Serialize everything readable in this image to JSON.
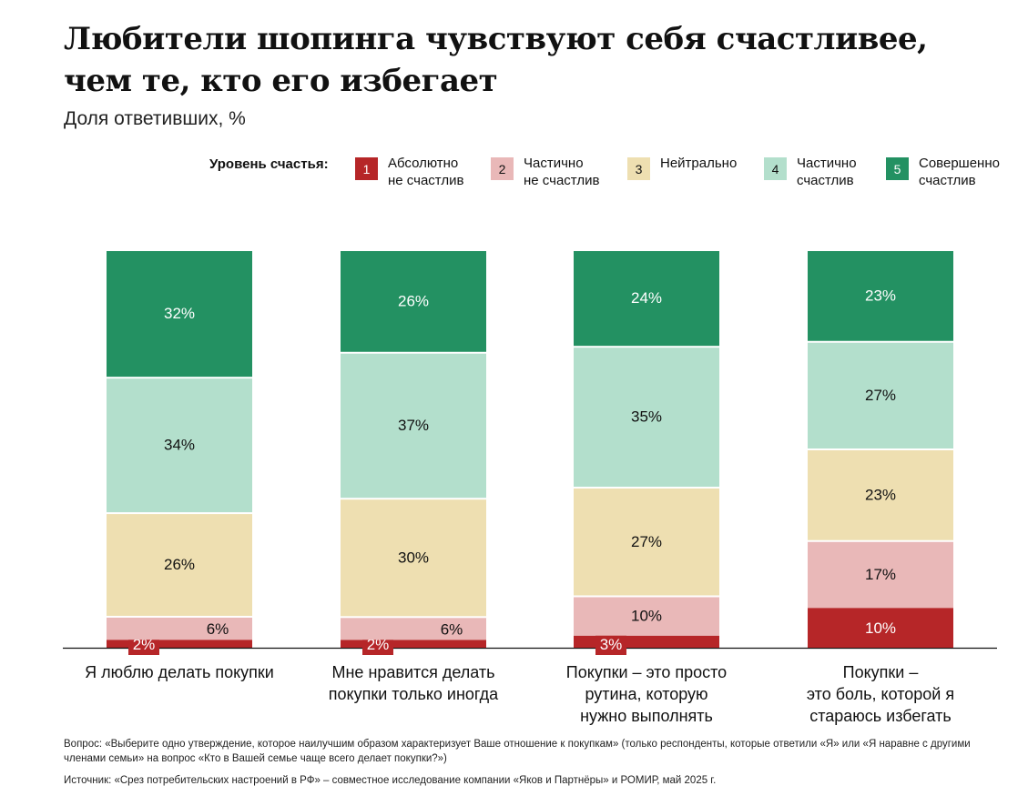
{
  "chart_data": {
    "type": "bar",
    "stacked": true,
    "title": "Любители шопинга чувствуют себя счастливее,\nчем те, кто его избегает",
    "subtitle": "Доля ответивших, %",
    "legend_title": "Уровень счастья:",
    "categories": [
      "Я люблю делать покупки",
      "Мне нравится делать\nпокупки только иногда",
      "Покупки – это просто\nрутина, которую\nнужно выполнять",
      "Покупки –\nэто боль, которой я\nстараюсь избегать"
    ],
    "series": [
      {
        "code": "1",
        "name": "Абсолютно\nне счастлив",
        "color": "#b62628",
        "text_color": "#ffffff",
        "values": [
          2,
          2,
          3,
          10
        ]
      },
      {
        "code": "2",
        "name": "Частично\nне счастлив",
        "color": "#e9b8b8",
        "text_color": "#111111",
        "values": [
          6,
          6,
          10,
          17
        ]
      },
      {
        "code": "3",
        "name": "Нейтрально",
        "color": "#eedfb1",
        "text_color": "#111111",
        "values": [
          26,
          30,
          27,
          23
        ]
      },
      {
        "code": "4",
        "name": "Частично\nсчастлив",
        "color": "#b3dfcc",
        "text_color": "#111111",
        "values": [
          34,
          37,
          35,
          27
        ]
      },
      {
        "code": "5",
        "name": "Совершенно\nсчастлив",
        "color": "#239162",
        "text_color": "#ffffff",
        "values": [
          32,
          26,
          24,
          23
        ]
      }
    ],
    "data_labels": [
      [
        "2%",
        "6%",
        "26%",
        "34%",
        "32%"
      ],
      [
        "2%",
        "6%",
        "30%",
        "37%",
        "26%"
      ],
      [
        "3%",
        "10%",
        "27%",
        "35%",
        "24%"
      ],
      [
        "10%",
        "17%",
        "23%",
        "27%",
        "23%"
      ]
    ],
    "ylim": [
      0,
      100
    ],
    "grid": false,
    "legend_position": "top"
  },
  "notes": {
    "question": "Вопрос: «Выберите одно утверждение, которое наилучшим образом характеризует Ваше отношение к покупкам» (только респонденты, которые ответили «Я» или «Я наравне с другими членами семьи» на вопрос «Кто в Вашей семье чаще всего делает покупки?»)",
    "source": "Источник: «Срез потребительских настроений в РФ» – совместное исследование компании «Яков и Партнёры» и РОМИР, май 2025 г."
  }
}
